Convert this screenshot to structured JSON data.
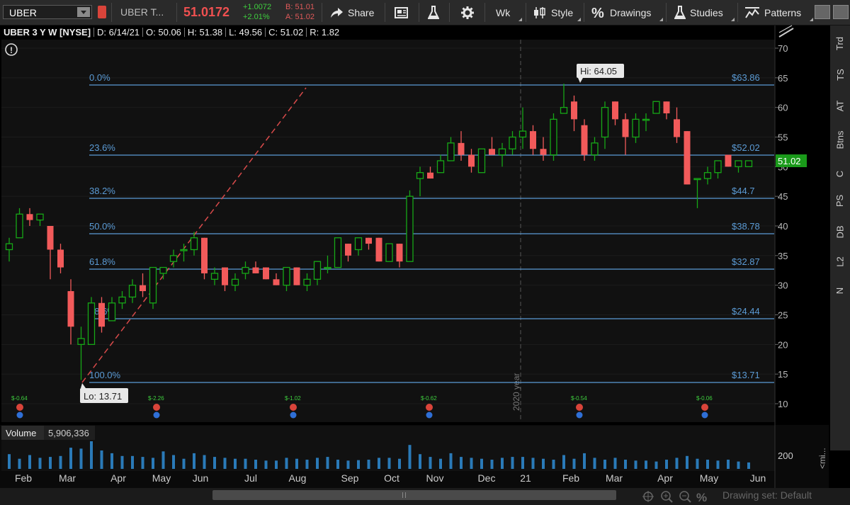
{
  "toolbar": {
    "symbol": "UBER",
    "company": "UBER T...",
    "last_price": "51.0172",
    "change": "+1.0072",
    "change_pct": "+2.01%",
    "bid": "B: 51.01",
    "ask": "A: 51.02",
    "share_label": "Share",
    "timeframe_label": "Wk",
    "style_label": "Style",
    "drawings_label": "Drawings",
    "studies_label": "Studies",
    "patterns_label": "Patterns"
  },
  "header": {
    "title": "UBER 3 Y W [NYSE]",
    "date": "D: 6/14/21",
    "open": "O: 50.06",
    "high": "H: 51.38",
    "low": "L: 49.56",
    "close": "C: 51.02",
    "range": "R: 1.82"
  },
  "fib_levels": [
    {
      "pct": "0.0%",
      "price": "$63.86"
    },
    {
      "pct": "23.6%",
      "price": "$52.02"
    },
    {
      "pct": "38.2%",
      "price": "$44.7"
    },
    {
      "pct": "50.0%",
      "price": "$38.78"
    },
    {
      "pct": "61.8%",
      "price": "$32.87"
    },
    {
      "pct": "78.6%",
      "price": "$24.44"
    },
    {
      "pct": "100.0%",
      "price": "$13.71"
    }
  ],
  "bubbles": {
    "high": "Hi: 64.05",
    "low": "Lo: 13.71"
  },
  "current_price_tag": "51.02",
  "year_marker": "2020 year",
  "price_axis_ticks": [
    "70",
    "65",
    "60",
    "55",
    "50",
    "45",
    "40",
    "35",
    "30",
    "25",
    "20",
    "15",
    "10"
  ],
  "time_axis": [
    "Feb",
    "Mar",
    "Apr",
    "May",
    "Jun",
    "Jul",
    "Aug",
    "Sep",
    "Oct",
    "Nov",
    "Dec",
    "21",
    "Feb",
    "Mar",
    "Apr",
    "May",
    "Jun"
  ],
  "events": [
    {
      "label": "$-0.64"
    },
    {
      "label": "$-2.26"
    },
    {
      "label": "$-1.02"
    },
    {
      "label": "$-0.62"
    },
    {
      "label": "$-0.54"
    },
    {
      "label": "$-0.06"
    }
  ],
  "volume": {
    "label": "Volume",
    "value": "5,906,336",
    "axis_tick": "200",
    "unit": "<mi..."
  },
  "right_tabs": [
    "Trd",
    "TS",
    "AT",
    "Btns",
    "C",
    "PS",
    "DB",
    "L2",
    "N"
  ],
  "footer": {
    "drawing_set": "Drawing set: Default"
  },
  "colors": {
    "up": "#17a817",
    "down": "#f25a5a",
    "fib": "#5b9bd5",
    "price_tag": "#1a9a1a"
  },
  "chart_data": {
    "type": "candlestick",
    "y_axis": [
      10,
      70
    ],
    "candles": [
      {
        "o": 36,
        "h": 38,
        "l": 34,
        "c": 37
      },
      {
        "o": 38,
        "h": 43,
        "l": 38,
        "c": 42
      },
      {
        "o": 42,
        "h": 43,
        "l": 40,
        "c": 41
      },
      {
        "o": 41,
        "h": 42,
        "l": 40,
        "c": 42
      },
      {
        "o": 40,
        "h": 40,
        "l": 31,
        "c": 36
      },
      {
        "o": 36,
        "h": 37,
        "l": 32,
        "c": 33
      },
      {
        "o": 29,
        "h": 31,
        "l": 20,
        "c": 23
      },
      {
        "o": 20,
        "h": 23,
        "l": 14,
        "c": 21
      },
      {
        "o": 20,
        "h": 28,
        "l": 20,
        "c": 27
      },
      {
        "o": 27,
        "h": 28,
        "l": 22,
        "c": 23
      },
      {
        "o": 24,
        "h": 28,
        "l": 24,
        "c": 27
      },
      {
        "o": 27,
        "h": 29,
        "l": 26,
        "c": 28
      },
      {
        "o": 28,
        "h": 31,
        "l": 27,
        "c": 30
      },
      {
        "o": 30,
        "h": 32,
        "l": 28,
        "c": 29
      },
      {
        "o": 27,
        "h": 33,
        "l": 26,
        "c": 33
      },
      {
        "o": 32,
        "h": 33,
        "l": 31,
        "c": 33
      },
      {
        "o": 34,
        "h": 36,
        "l": 33,
        "c": 35
      },
      {
        "o": 36,
        "h": 37,
        "l": 34,
        "c": 36
      },
      {
        "o": 36,
        "h": 39,
        "l": 35,
        "c": 38
      },
      {
        "o": 38,
        "h": 38,
        "l": 31,
        "c": 32
      },
      {
        "o": 31,
        "h": 33,
        "l": 30,
        "c": 32
      },
      {
        "o": 33,
        "h": 33,
        "l": 29,
        "c": 30
      },
      {
        "o": 30,
        "h": 32,
        "l": 29,
        "c": 31
      },
      {
        "o": 32,
        "h": 34,
        "l": 31,
        "c": 33
      },
      {
        "o": 33,
        "h": 34,
        "l": 32,
        "c": 32
      },
      {
        "o": 33,
        "h": 33,
        "l": 31,
        "c": 31
      },
      {
        "o": 31,
        "h": 32,
        "l": 30,
        "c": 30
      },
      {
        "o": 30,
        "h": 33,
        "l": 29,
        "c": 33
      },
      {
        "o": 33,
        "h": 33,
        "l": 30,
        "c": 30
      },
      {
        "o": 30,
        "h": 32,
        "l": 29,
        "c": 31
      },
      {
        "o": 31,
        "h": 34,
        "l": 30,
        "c": 34
      },
      {
        "o": 33,
        "h": 35,
        "l": 32,
        "c": 33
      },
      {
        "o": 33,
        "h": 38,
        "l": 33,
        "c": 38
      },
      {
        "o": 37,
        "h": 37,
        "l": 34,
        "c": 35
      },
      {
        "o": 36,
        "h": 38,
        "l": 35,
        "c": 38
      },
      {
        "o": 38,
        "h": 38,
        "l": 36,
        "c": 37
      },
      {
        "o": 38,
        "h": 38,
        "l": 34,
        "c": 34
      },
      {
        "o": 34,
        "h": 37,
        "l": 34,
        "c": 37
      },
      {
        "o": 37,
        "h": 37,
        "l": 33,
        "c": 34
      },
      {
        "o": 34,
        "h": 46,
        "l": 34,
        "c": 45
      },
      {
        "o": 48,
        "h": 50,
        "l": 45,
        "c": 49
      },
      {
        "o": 49,
        "h": 50,
        "l": 48,
        "c": 48
      },
      {
        "o": 49,
        "h": 52,
        "l": 49,
        "c": 51
      },
      {
        "o": 51,
        "h": 55,
        "l": 51,
        "c": 54
      },
      {
        "o": 54,
        "h": 56,
        "l": 51,
        "c": 52
      },
      {
        "o": 52,
        "h": 53,
        "l": 49,
        "c": 50
      },
      {
        "o": 49,
        "h": 53,
        "l": 49,
        "c": 53
      },
      {
        "o": 53,
        "h": 55,
        "l": 52,
        "c": 52
      },
      {
        "o": 52,
        "h": 54,
        "l": 50,
        "c": 53
      },
      {
        "o": 53,
        "h": 56,
        "l": 52,
        "c": 55
      },
      {
        "o": 55,
        "h": 60,
        "l": 53,
        "c": 56
      },
      {
        "o": 56,
        "h": 57,
        "l": 52,
        "c": 53
      },
      {
        "o": 53,
        "h": 55,
        "l": 51,
        "c": 52
      },
      {
        "o": 52,
        "h": 59,
        "l": 51,
        "c": 58
      },
      {
        "o": 59,
        "h": 64,
        "l": 59,
        "c": 60
      },
      {
        "o": 61,
        "h": 62,
        "l": 56,
        "c": 58
      },
      {
        "o": 57,
        "h": 58,
        "l": 51,
        "c": 52
      },
      {
        "o": 52,
        "h": 55,
        "l": 51,
        "c": 54
      },
      {
        "o": 55,
        "h": 61,
        "l": 53,
        "c": 60
      },
      {
        "o": 61,
        "h": 61,
        "l": 57,
        "c": 58
      },
      {
        "o": 58,
        "h": 59,
        "l": 52,
        "c": 55
      },
      {
        "o": 55,
        "h": 59,
        "l": 54,
        "c": 58
      },
      {
        "o": 58,
        "h": 59,
        "l": 56,
        "c": 58
      },
      {
        "o": 59,
        "h": 61,
        "l": 59,
        "c": 61
      },
      {
        "o": 61,
        "h": 61,
        "l": 58,
        "c": 59
      },
      {
        "o": 58,
        "h": 60,
        "l": 54,
        "c": 55
      },
      {
        "o": 56,
        "h": 56,
        "l": 47,
        "c": 47
      },
      {
        "o": 48,
        "h": 48,
        "l": 43,
        "c": 48
      },
      {
        "o": 48,
        "h": 50,
        "l": 47,
        "c": 49
      },
      {
        "o": 49,
        "h": 51,
        "l": 48,
        "c": 51
      },
      {
        "o": 52,
        "h": 52,
        "l": 50,
        "c": 50
      },
      {
        "o": 50,
        "h": 51,
        "l": 49,
        "c": 51
      },
      {
        "o": 50,
        "h": 51,
        "l": 50,
        "c": 51
      }
    ],
    "volume_values": [
      160,
      110,
      150,
      120,
      130,
      140,
      230,
      220,
      300,
      200,
      170,
      140,
      140,
      130,
      120,
      190,
      150,
      110,
      170,
      150,
      130,
      120,
      110,
      110,
      100,
      90,
      90,
      120,
      110,
      100,
      120,
      130,
      100,
      90,
      95,
      100,
      120,
      120,
      110,
      260,
      160,
      130,
      110,
      170,
      130,
      120,
      110,
      100,
      120,
      130,
      130,
      120,
      110,
      100,
      150,
      110,
      170,
      120,
      100,
      120,
      100,
      90,
      90,
      80,
      100,
      120,
      140,
      110,
      100,
      90,
      100,
      80,
      70
    ]
  }
}
